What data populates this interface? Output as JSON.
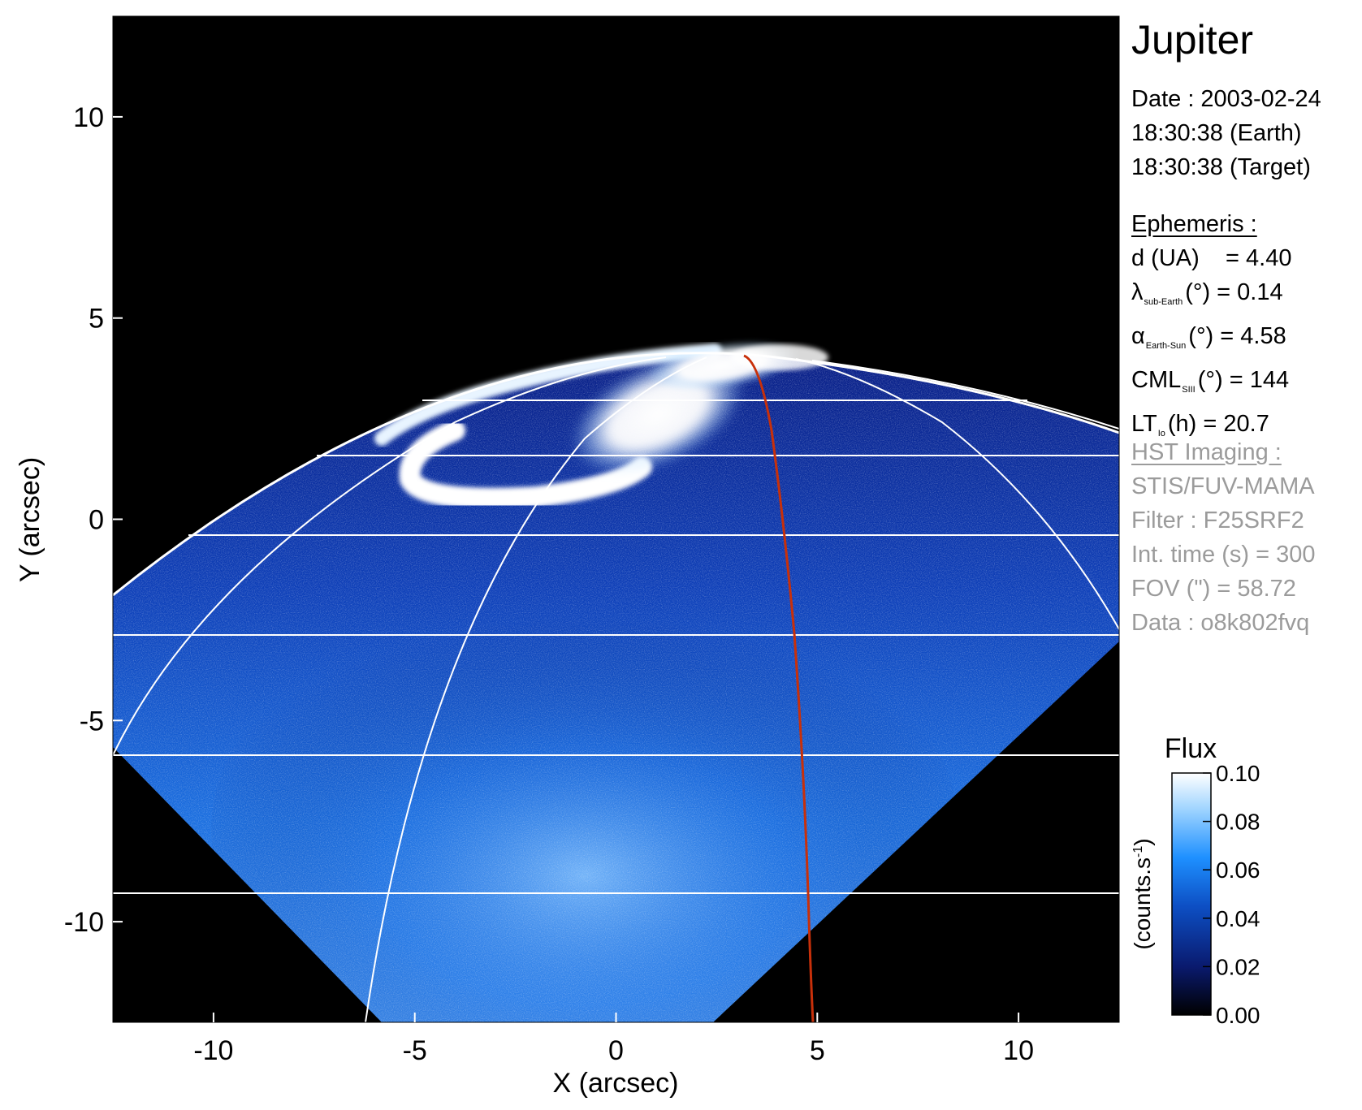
{
  "title": "Jupiter",
  "info": {
    "date_line": "Date : 2003-02-24",
    "earth_time": "18:30:38 (Earth)",
    "target_time": "18:30:38 (Target)"
  },
  "ephemeris": {
    "heading": "Ephemeris :",
    "distance": "d (UA)    = 4.40",
    "lat_symbol": "λ",
    "lat_sub": "sub-Earth",
    "lat_rest": "(°) = 0.14",
    "phase_symbol": "α",
    "phase_sub": "Earth-Sun",
    "phase_rest": "(°) = 4.58",
    "cml_symbol": "CML",
    "cml_sub": "SIII",
    "cml_rest": "(°) = 144",
    "lt_symbol": "LT",
    "lt_sub": "Io",
    "lt_rest": "(h) = 20.7"
  },
  "imaging": {
    "heading": "HST Imaging :",
    "instrument": "STIS/FUV-MAMA",
    "filter": "Filter : F25SRF2",
    "int_time": "Int. time (s) = 300",
    "fov": "FOV (\") = 58.72",
    "dataset": "Data : o8k802fvq"
  },
  "axes": {
    "xlabel": "X (arcsec)",
    "ylabel": "Y (arcsec)",
    "x_ticks": [
      -10,
      -5,
      0,
      5,
      10
    ],
    "y_ticks": [
      10,
      5,
      0,
      -5,
      -10
    ],
    "xlim": [
      -12.5,
      12.5
    ],
    "ylim": [
      -12.5,
      12.5
    ]
  },
  "colorbar": {
    "title": "Flux",
    "unit_label": "(counts.s",
    "unit_exp": "-1",
    "unit_close": ")",
    "ticks": [
      "0.00",
      "0.02",
      "0.04",
      "0.06",
      "0.08",
      "0.10"
    ],
    "colors": [
      "#000000",
      "#0a1a6e",
      "#0d4fc4",
      "#1e90ff",
      "#9fd4ff",
      "#ffffff"
    ]
  },
  "colors": {
    "background": "#000000",
    "grid": "#ffffff",
    "io_footprint": "#c8300a"
  }
}
